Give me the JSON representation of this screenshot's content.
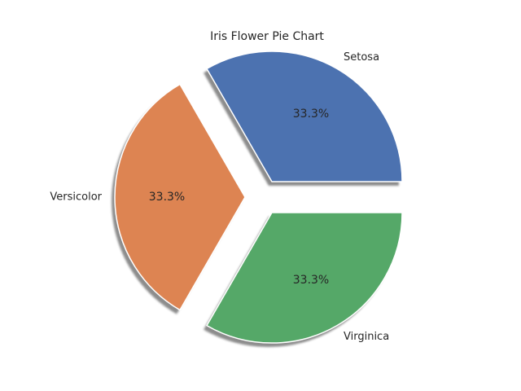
{
  "chart_data": {
    "type": "pie",
    "title": "Iris Flower Pie Chart",
    "categories": [
      "Setosa",
      "Versicolor",
      "Virginica"
    ],
    "values": [
      50,
      50,
      50
    ],
    "percent_labels": [
      "33.3%",
      "33.3%",
      "33.3%"
    ],
    "colors": [
      "#4c72b0",
      "#dd8452",
      "#55a868"
    ],
    "explode": true,
    "shadow": true,
    "start_angle_deg": 0,
    "legend": "none"
  }
}
